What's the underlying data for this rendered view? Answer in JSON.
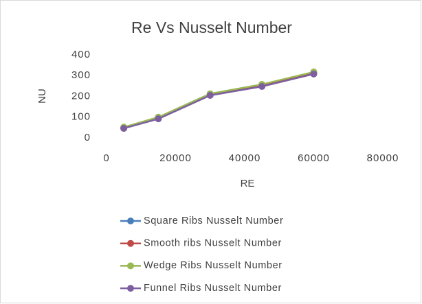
{
  "chart_data": {
    "type": "line",
    "title": "Re Vs Nusselt Number",
    "xlabel": "RE",
    "ylabel": "NU",
    "x": [
      5000,
      15000,
      30000,
      45000,
      60000
    ],
    "series": [
      {
        "name": "Square Ribs Nusselt Number",
        "color": "#4a7ebb",
        "values": [
          50,
          97,
          210,
          255,
          314
        ]
      },
      {
        "name": "Smooth ribs Nusselt Number",
        "color": "#be4b48",
        "values": [
          48,
          95,
          207,
          252,
          311
        ]
      },
      {
        "name": "Wedge Ribs Nusselt Number",
        "color": "#98b954",
        "values": [
          52,
          100,
          213,
          258,
          318
        ]
      },
      {
        "name": "Funnel Ribs Nusselt Number",
        "color": "#7d5fa0",
        "values": [
          46,
          92,
          205,
          248,
          308
        ]
      }
    ],
    "xlim": [
      0,
      80000
    ],
    "xticks": [
      0,
      20000,
      40000,
      60000,
      80000
    ],
    "ylim": [
      0,
      400
    ],
    "yticks": [
      0,
      100,
      200,
      300,
      400
    ],
    "grid": false,
    "legend": "bottom"
  }
}
